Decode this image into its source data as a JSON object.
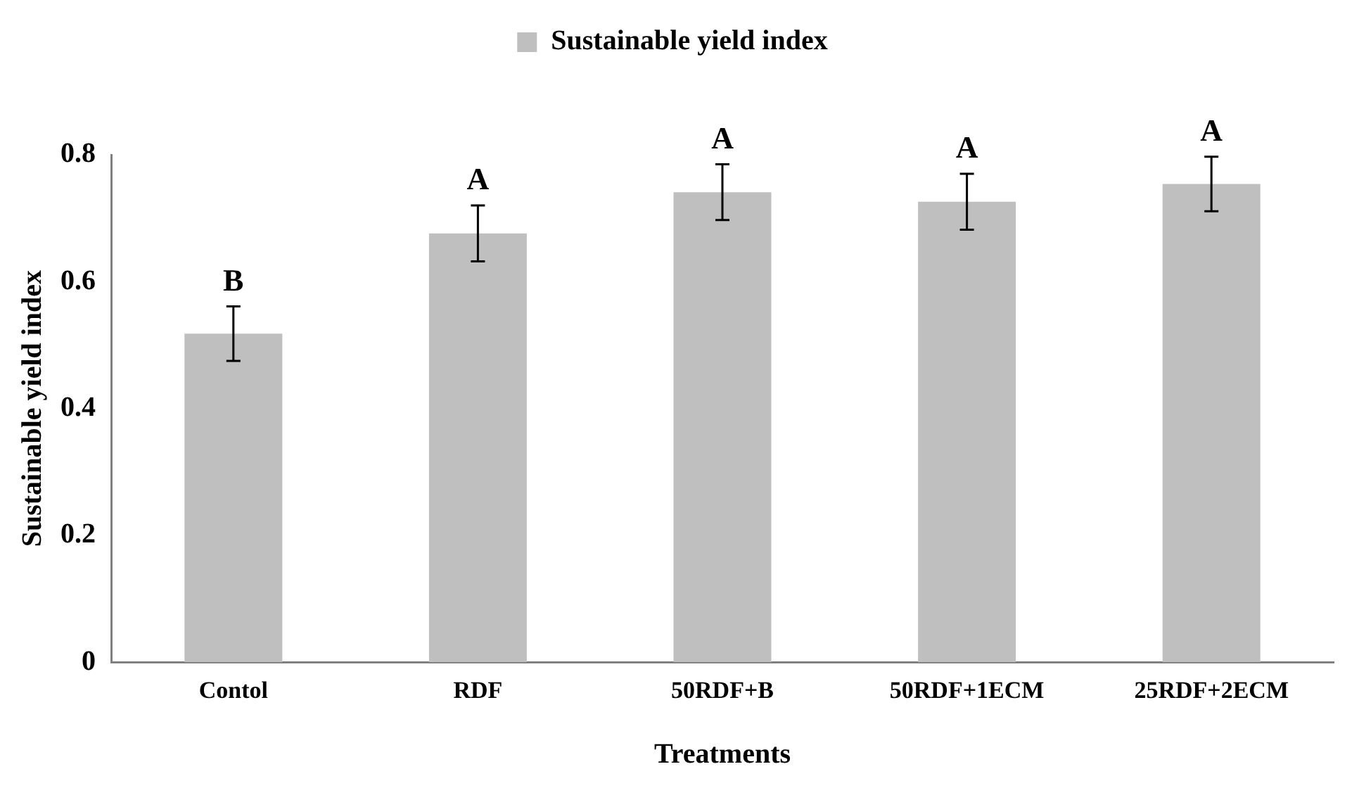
{
  "chart_data": {
    "type": "bar",
    "xlabel": "Treatments",
    "ylabel": "Sustainable yield index",
    "categories": [
      "Contol",
      "RDF",
      "50RDF+B",
      "50RDF+1ECM",
      "25RDF+2ECM"
    ],
    "series": [
      {
        "name": "Sustainable yield index",
        "color": "#bfbfbf",
        "values": [
          0.518,
          0.676,
          0.741,
          0.726,
          0.754
        ],
        "errors": [
          0.043,
          0.044,
          0.044,
          0.044,
          0.043
        ]
      }
    ],
    "ylim": [
      0,
      0.8
    ],
    "yticks": [
      0,
      0.2,
      0.4,
      0.6,
      0.8
    ],
    "grid": false,
    "legend": "top",
    "annotations": [
      {
        "text": "B",
        "x": "Contol",
        "y": 0.561
      },
      {
        "text": "A",
        "x": "RDF",
        "y": 0.72
      },
      {
        "text": "A",
        "x": "50RDF+B",
        "y": 0.785
      },
      {
        "text": "A",
        "x": "50RDF+1ECM",
        "y": 0.77
      },
      {
        "text": "A",
        "x": "25RDF+2ECM",
        "y": 0.797
      }
    ]
  }
}
